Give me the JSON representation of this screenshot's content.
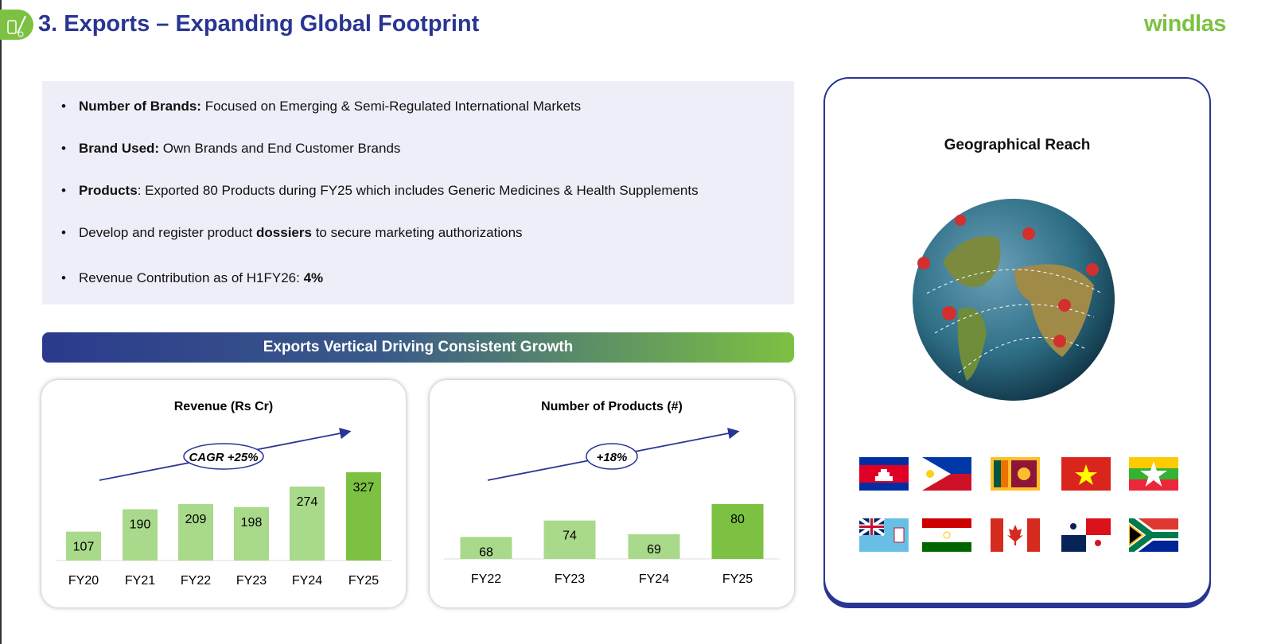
{
  "header": {
    "title": "3. Exports – Expanding Global Footprint",
    "logo_text": "windlas",
    "icon": "medicine-bottle-syringe-icon"
  },
  "bullets": [
    {
      "bold": "Number of  Brands:",
      "text": " Focused on Emerging & Semi-Regulated International Markets"
    },
    {
      "bold": "Brand Used:",
      "text": " Own Brands and End Customer Brands"
    },
    {
      "bold": "Products",
      "text": ": Exported 80 Products during FY25 which includes Generic Medicines & Health Supplements"
    },
    {
      "pre": "Develop and register product ",
      "bold": "dossiers",
      "text": " to secure marketing authorizations"
    },
    {
      "pre": "Revenue Contribution as of H1FY26: ",
      "bold": "4%",
      "text": ""
    }
  ],
  "banner": "Exports Vertical Driving Consistent Growth",
  "colors": {
    "title": "#283593",
    "accent": "#7dc142",
    "bar": "#a9d98a",
    "bar_highlight": "#7dc142",
    "arrow": "#283593"
  },
  "chart_data": [
    {
      "type": "bar",
      "title": "Revenue (Rs Cr)",
      "categories": [
        "FY20",
        "FY21",
        "FY22",
        "FY23",
        "FY24",
        "FY25"
      ],
      "values": [
        107,
        190,
        209,
        198,
        274,
        327
      ],
      "annotation": "CAGR +25%",
      "ylim": [
        0,
        327
      ],
      "highlight": "FY25"
    },
    {
      "type": "bar",
      "title": "Number of Products (#)",
      "categories": [
        "FY22",
        "FY23",
        "FY24",
        "FY25"
      ],
      "values": [
        68,
        74,
        69,
        80
      ],
      "annotation": "+18%",
      "ylim": [
        60,
        80
      ],
      "highlight": "FY25"
    }
  ],
  "reach": {
    "title": "Geographical Reach",
    "globe": "globe-with-location-pins",
    "flags": [
      "Cambodia",
      "Philippines",
      "Sri Lanka",
      "Vietnam",
      "Myanmar",
      "Fiji",
      "Tajikistan",
      "Canada",
      "Panama",
      "South Africa"
    ]
  }
}
